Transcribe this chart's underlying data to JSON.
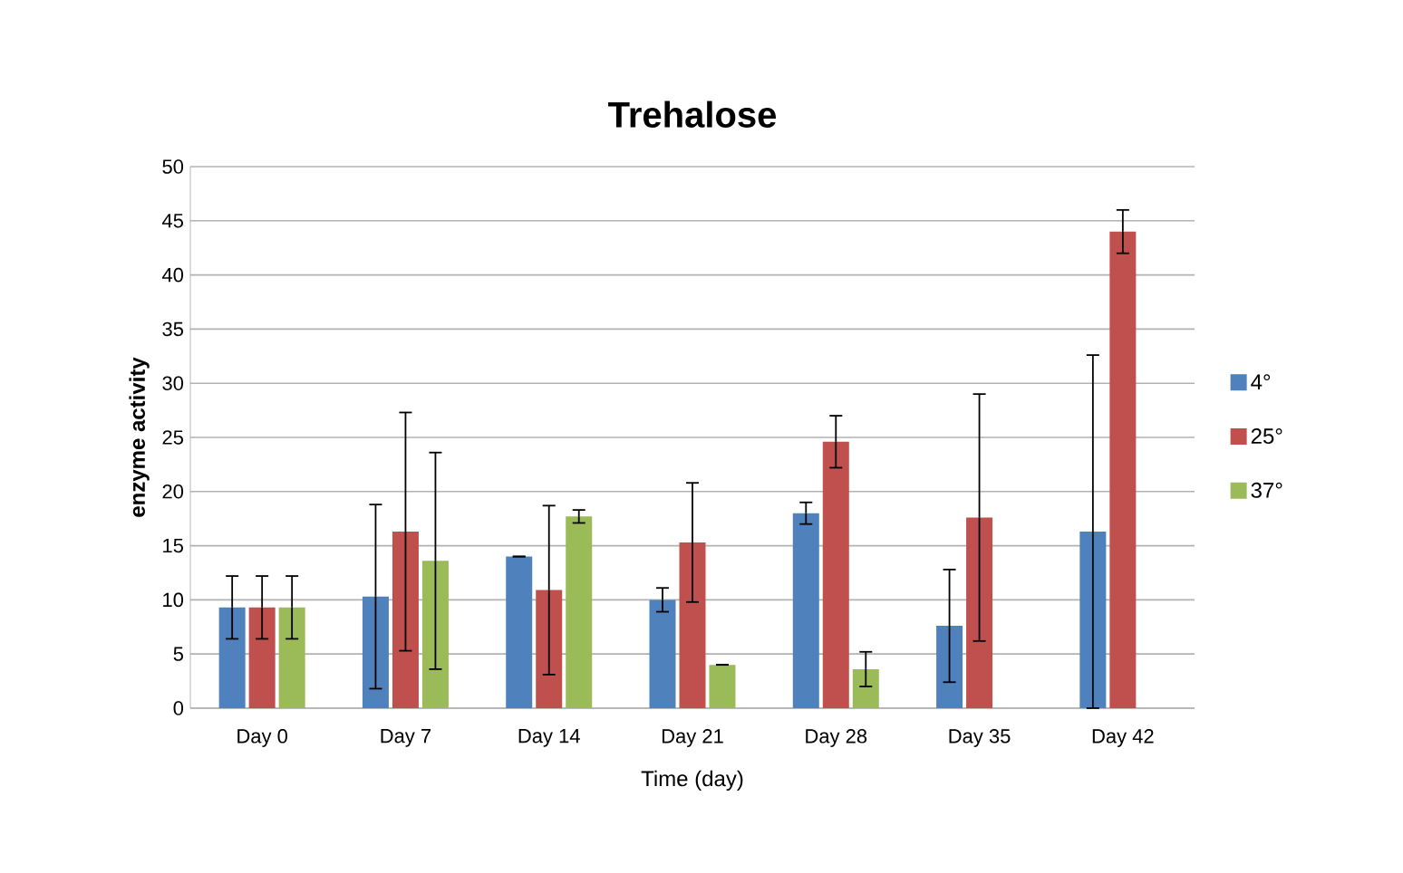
{
  "chart_data": {
    "type": "bar",
    "title": "Trehalose",
    "xlabel": "Time (day)",
    "ylabel": "enzyme activity",
    "categories": [
      "Day 0",
      "Day 7",
      "Day 14",
      "Day 21",
      "Day 28",
      "Day 35",
      "Day 42"
    ],
    "series": [
      {
        "name": "4°",
        "color": "#4f81bd",
        "values": [
          9.3,
          10.3,
          14,
          10,
          18,
          7.6,
          16.3
        ],
        "errors": [
          2.9,
          8.5,
          0,
          1.1,
          1,
          5.2,
          16.3
        ]
      },
      {
        "name": "25°",
        "color": "#c0504d",
        "values": [
          9.3,
          16.3,
          10.9,
          15.3,
          24.6,
          17.6,
          44
        ],
        "errors": [
          2.9,
          11,
          7.8,
          5.5,
          2.4,
          11.4,
          2
        ]
      },
      {
        "name": "37°",
        "color": "#9bbb59",
        "values": [
          9.3,
          13.6,
          17.7,
          4,
          3.6,
          0,
          0
        ],
        "errors": [
          2.9,
          10,
          0.6,
          0,
          1.6,
          null,
          null
        ]
      }
    ],
    "ylim": [
      0,
      50
    ],
    "yticks": [
      0,
      5,
      10,
      15,
      20,
      25,
      30,
      35,
      40,
      45,
      50
    ],
    "grid": "y",
    "legend": "right"
  }
}
